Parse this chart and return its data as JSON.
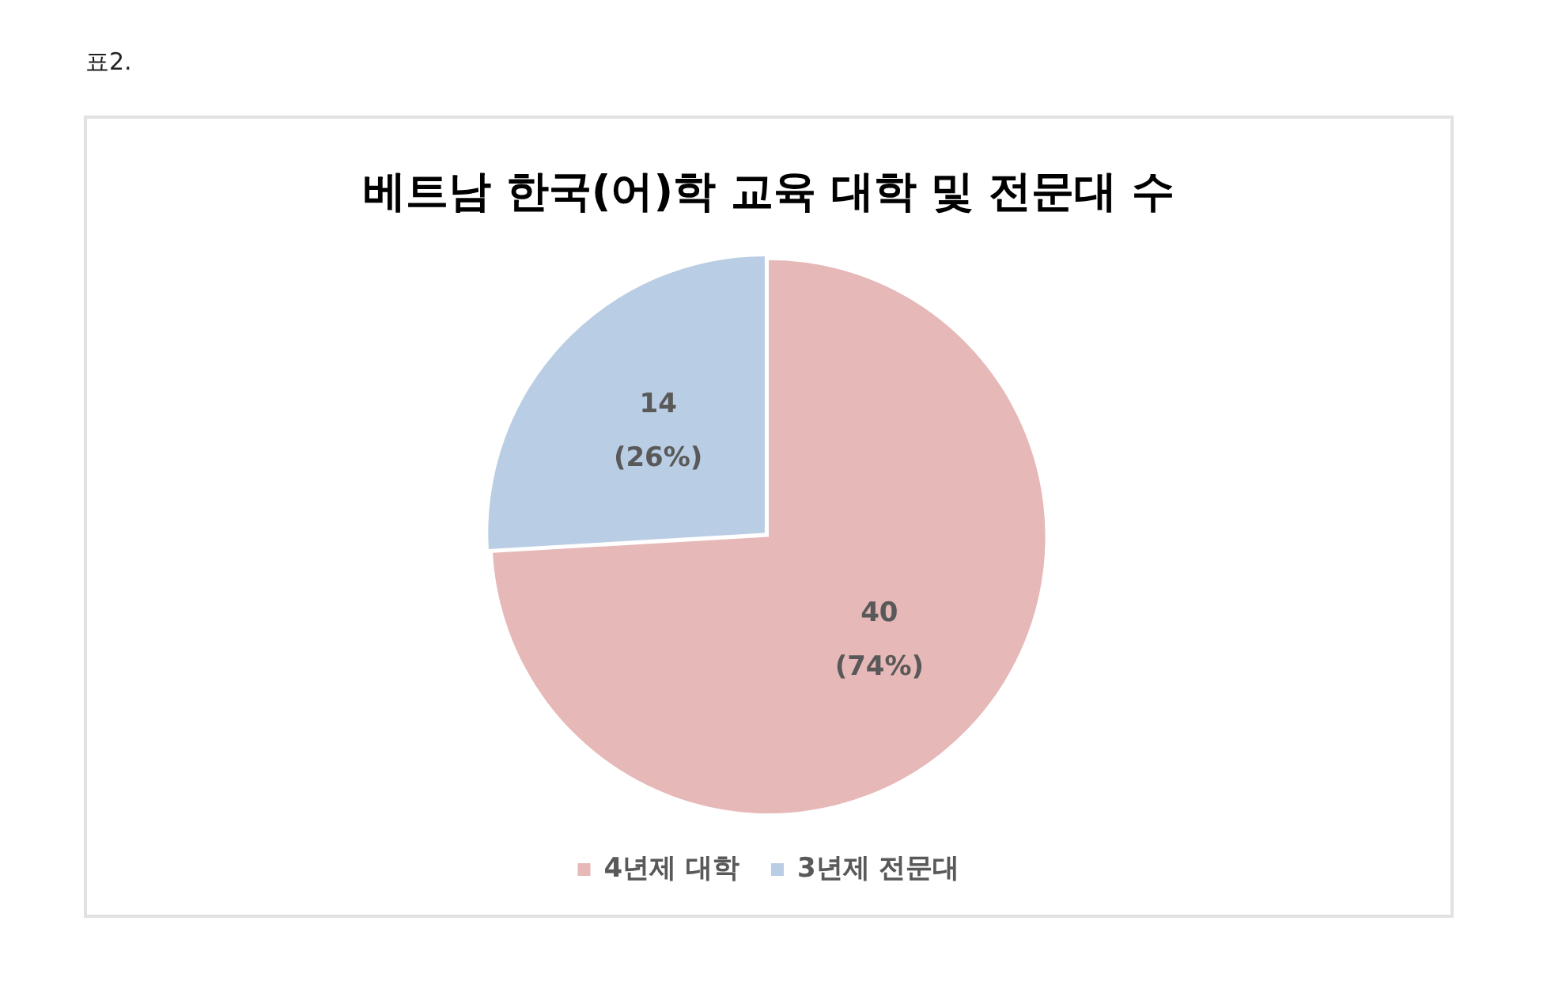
{
  "chart_data": {
    "type": "pie",
    "title": "베트남 한국(어)학 교육 대학 및 전문대 수",
    "categories": [
      "4년제 대학",
      "3년제 전문대"
    ],
    "values": [
      40,
      14
    ],
    "colors": [
      "#e6b8b7",
      "#b9cde4"
    ],
    "value_labels": [
      "40\n(74%)",
      "14\n(26%)"
    ],
    "legend": "bottom",
    "annotations": [
      "표2."
    ]
  }
}
